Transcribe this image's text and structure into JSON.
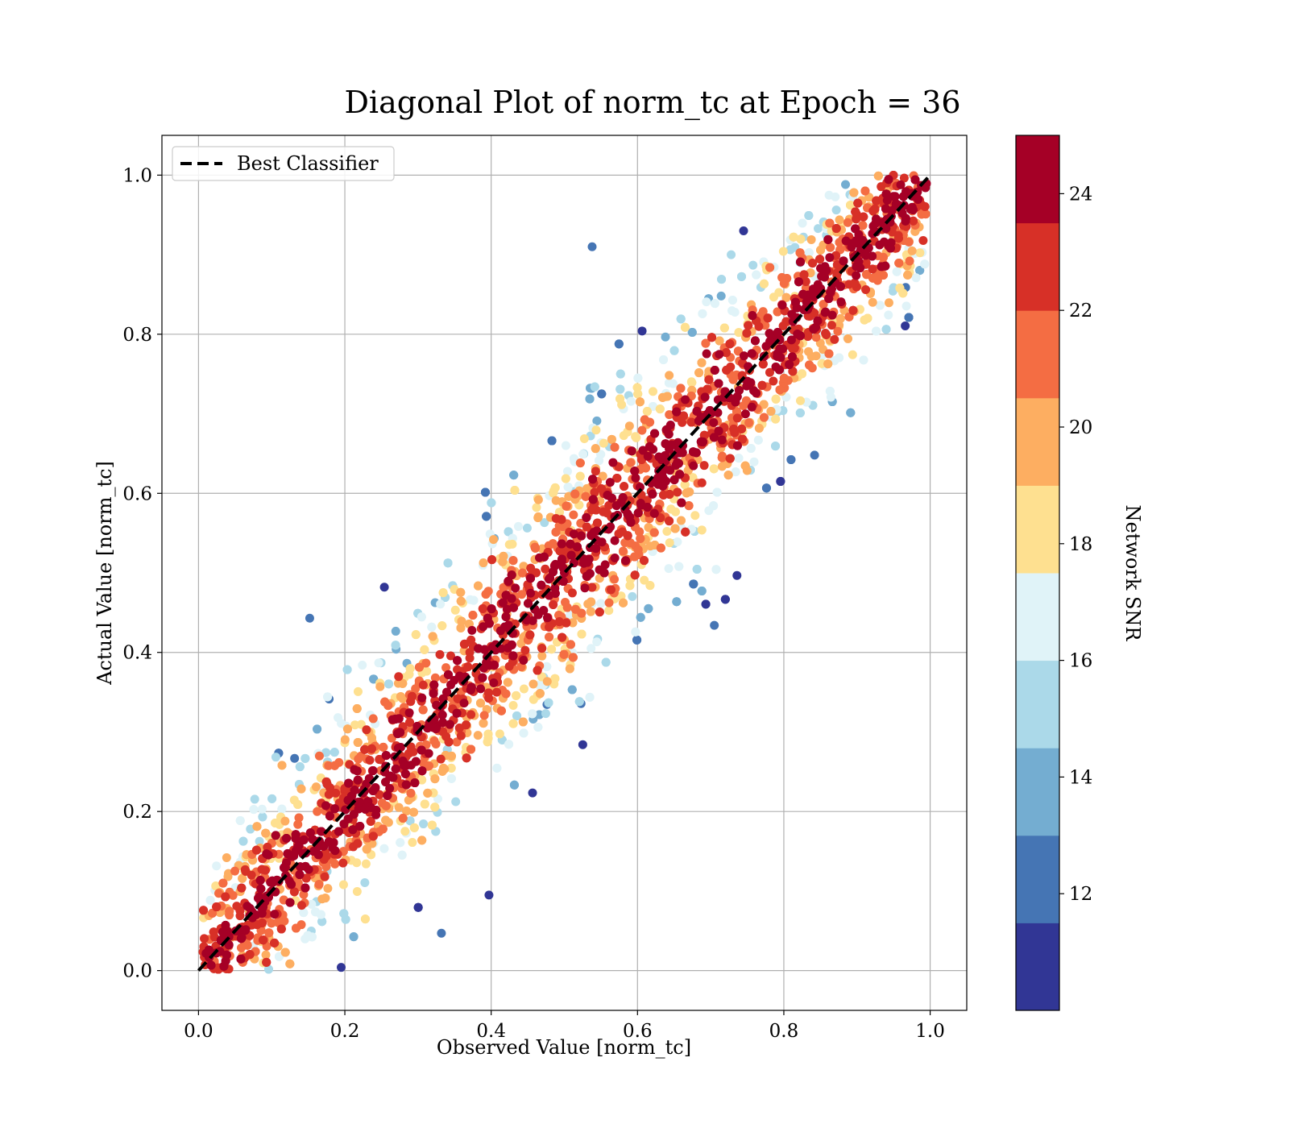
{
  "chart_data": {
    "type": "scatter",
    "title": "Diagonal Plot of norm_tc at Epoch = 36",
    "xlabel": "Observed Value [norm_tc]",
    "ylabel": "Actual Value [norm_tc]",
    "xlim": [
      -0.05,
      1.05
    ],
    "ylim": [
      -0.05,
      1.05
    ],
    "x_ticks": [
      "0.0",
      "0.2",
      "0.4",
      "0.6",
      "0.8",
      "1.0"
    ],
    "y_ticks": [
      "0.0",
      "0.2",
      "0.4",
      "0.6",
      "0.8",
      "1.0"
    ],
    "grid": true,
    "legend": {
      "placement": "top-left",
      "entries": [
        {
          "label": "Best Classifier",
          "style": "dashed",
          "color": "#000000"
        }
      ]
    },
    "reference_line": {
      "name": "Best Classifier",
      "x": [
        0,
        1
      ],
      "y": [
        0,
        1
      ]
    },
    "colorbar": {
      "label": "Network SNR",
      "range": [
        10,
        25
      ],
      "ticks": [
        "12",
        "14",
        "16",
        "18",
        "20",
        "22",
        "24"
      ],
      "colors": [
        "#313695",
        "#4575b4",
        "#74add1",
        "#abd9e9",
        "#e0f3f8",
        "#fee090",
        "#fdae61",
        "#f46d43",
        "#d73027",
        "#a50026"
      ]
    },
    "outliers": [
      {
        "x": 0.538,
        "y": 0.91,
        "snr": 12.5
      },
      {
        "x": 0.745,
        "y": 0.93,
        "snr": 10.5
      },
      {
        "x": 0.152,
        "y": 0.443,
        "snr": 12.8
      },
      {
        "x": 0.254,
        "y": 0.482,
        "snr": 11.2
      },
      {
        "x": 0.705,
        "y": 0.434,
        "snr": 12.0
      },
      {
        "x": 0.397,
        "y": 0.095,
        "snr": 10.8
      },
      {
        "x": 0.332,
        "y": 0.047,
        "snr": 12.5
      },
      {
        "x": 0.195,
        "y": 0.004,
        "snr": 11.0
      },
      {
        "x": 0.842,
        "y": 0.648,
        "snr": 12.5
      },
      {
        "x": 0.728,
        "y": 0.9,
        "snr": 15.8
      }
    ],
    "points": [
      {
        "x": 0.1,
        "y": 0.1,
        "snr": 24
      },
      {
        "x": 0.3,
        "y": 0.3,
        "snr": 24
      },
      {
        "x": 0.5,
        "y": 0.5,
        "snr": 24
      },
      {
        "x": 0.7,
        "y": 0.7,
        "snr": 24
      },
      {
        "x": 0.9,
        "y": 0.9,
        "snr": 24
      }
    ]
  }
}
